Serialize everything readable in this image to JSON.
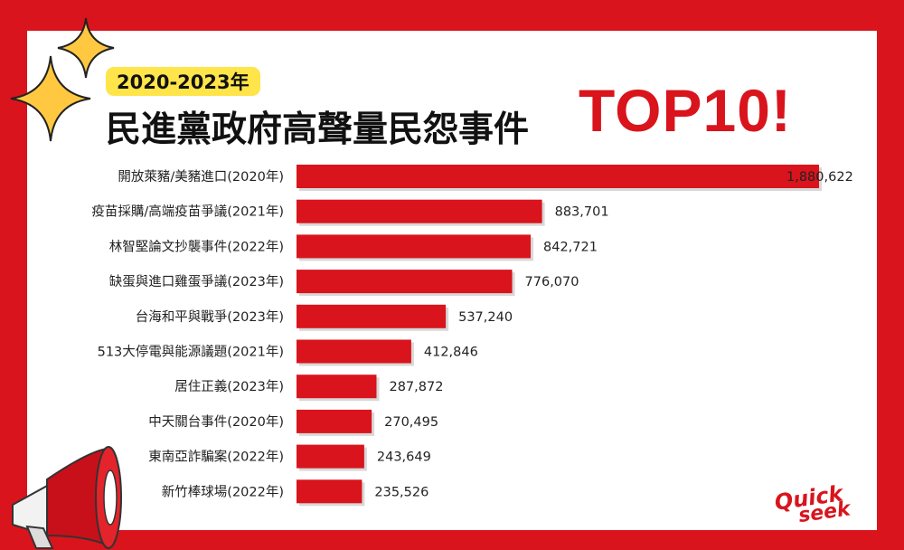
{
  "header": {
    "year_badge": "2020-2023年",
    "title": "民進黨政府高聲量民怨事件",
    "title_highlight": "TOP10!"
  },
  "logo": {
    "line1": "Quick",
    "line2": "seek"
  },
  "colors": {
    "frame": "#d9141c",
    "bar": "#d9141c",
    "badge": "#ffe44a",
    "sparkle": "#ffc840"
  },
  "icons": [
    "sparkle-icon",
    "megaphone-icon"
  ],
  "chart_data": {
    "type": "bar",
    "orientation": "horizontal",
    "categories": [
      "開放萊豬/美豬進口(2020年)",
      "疫苗採購/高端疫苗爭議(2021年)",
      "林智堅論文抄襲事件(2022年)",
      "缺蛋與進口雞蛋爭議(2023年)",
      "台海和平與戰爭(2023年)",
      "513大停電與能源議題(2021年)",
      "居住正義(2023年)",
      "中天關台事件(2020年)",
      "東南亞詐騙案(2022年)",
      "新竹棒球場(2022年)"
    ],
    "values": [
      1880622,
      883701,
      842721,
      776070,
      537240,
      412846,
      287872,
      270495,
      243649,
      235526
    ],
    "value_labels": [
      "1,880,622",
      "883,701",
      "842,721",
      "776,070",
      "537,240",
      "412,846",
      "287,872",
      "270,495",
      "243,649",
      "235,526"
    ],
    "xlim": [
      0,
      1880622
    ],
    "grid": false
  }
}
